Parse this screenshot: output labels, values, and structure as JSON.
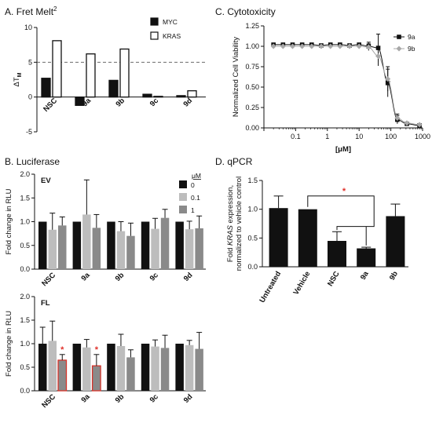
{
  "panels": {
    "A": {
      "letter": "A.",
      "title": "Fret Melt",
      "title_sup": "2"
    },
    "B": {
      "letter": "B.",
      "title": "Luciferase"
    },
    "C": {
      "letter": "C.",
      "title": "Cytotoxicity"
    },
    "D": {
      "letter": "D.",
      "title": "qPCR"
    }
  },
  "chart_data": [
    {
      "id": "A",
      "type": "bar",
      "ylabel": "ΔT",
      "ylabel_sub": "M",
      "ylim": [
        -5,
        10
      ],
      "yticks": [
        -5,
        0,
        5,
        10
      ],
      "reference_line": 5,
      "categories": [
        "NSC",
        "9a",
        "9b",
        "9c",
        "9d"
      ],
      "series": [
        {
          "name": "MYC",
          "color": "#111111",
          "values": [
            2.7,
            -1.2,
            2.4,
            0.4,
            0.2
          ]
        },
        {
          "name": "KRAS",
          "color": "#ffffff",
          "values": [
            8.1,
            6.2,
            6.9,
            0.1,
            0.9
          ]
        }
      ],
      "legend": "top-right"
    },
    {
      "id": "B_EV",
      "type": "bar",
      "panel_label": "EV",
      "ylabel": "Fold change in RLU",
      "ylim": [
        0,
        2.0
      ],
      "yticks": [
        0.0,
        0.5,
        1.0,
        1.5,
        2.0
      ],
      "legend_title": "μM",
      "legend": "top-right",
      "categories": [
        "NSC",
        "9a",
        "9b",
        "9c",
        "9d"
      ],
      "series": [
        {
          "name": "0",
          "color": "#111111",
          "values": [
            1.0,
            1.0,
            1.0,
            1.0,
            1.0
          ],
          "errors": [
            0.0,
            0.0,
            0.0,
            0.0,
            0.0
          ]
        },
        {
          "name": "0.1",
          "color": "#bdbdbd",
          "values": [
            0.83,
            1.15,
            0.8,
            0.85,
            0.84
          ],
          "errors": [
            0.35,
            0.73,
            0.2,
            0.22,
            0.17
          ]
        },
        {
          "name": "1",
          "color": "#8a8a8a",
          "values": [
            0.92,
            0.87,
            0.7,
            1.08,
            0.86
          ],
          "errors": [
            0.18,
            0.28,
            0.27,
            0.18,
            0.26
          ]
        }
      ]
    },
    {
      "id": "B_FL",
      "type": "bar",
      "panel_label": "FL",
      "ylabel": "Fold change in RLU",
      "ylim": [
        0,
        2.0
      ],
      "yticks": [
        0.0,
        0.5,
        1.0,
        1.5,
        2.0
      ],
      "categories": [
        "NSC",
        "9a",
        "9b",
        "9c",
        "9d"
      ],
      "series": [
        {
          "name": "0",
          "color": "#111111",
          "values": [
            1.0,
            1.0,
            1.0,
            1.0,
            1.0
          ],
          "errors": [
            0.35,
            0.0,
            0.0,
            0.0,
            0.0
          ]
        },
        {
          "name": "0.1",
          "color": "#bdbdbd",
          "values": [
            1.06,
            0.92,
            0.95,
            0.94,
            0.97
          ],
          "errors": [
            0.42,
            0.17,
            0.25,
            0.14,
            0.1
          ]
        },
        {
          "name": "1",
          "color": "#8a8a8a",
          "values": [
            0.65,
            0.53,
            0.71,
            0.91,
            0.89
          ],
          "errors": [
            0.12,
            0.24,
            0.16,
            0.27,
            0.35
          ]
        }
      ],
      "significant": [
        {
          "category": "NSC",
          "series": "1"
        },
        {
          "category": "9a",
          "series": "1"
        }
      ],
      "significance_marker": "*"
    },
    {
      "id": "C",
      "type": "line",
      "xlabel": "[μM]",
      "ylabel": "Normalized Cell Viability",
      "x_scale": "log",
      "xlim": [
        0.01,
        1000
      ],
      "xticks": [
        0.01,
        0.1,
        1,
        10,
        100,
        1000
      ],
      "xtick_labels": [
        "0.01",
        "0.1",
        "1",
        "10",
        "100",
        "1000"
      ],
      "ylim": [
        0,
        1.25
      ],
      "yticks": [
        0.0,
        0.25,
        0.5,
        0.75,
        1.0,
        1.25
      ],
      "ytick_labels": [
        "0.00",
        "0.25",
        "0.50",
        "0.75",
        "1.00",
        "1.25"
      ],
      "legend": "top-right",
      "series": [
        {
          "name": "9a",
          "color": "#111111",
          "marker": "square",
          "x": [
            0.02,
            0.04,
            0.08,
            0.16,
            0.32,
            0.64,
            1.25,
            2.5,
            5,
            10,
            20,
            40,
            80,
            160,
            320,
            800
          ],
          "y": [
            1.02,
            1.02,
            1.02,
            1.02,
            1.02,
            1.01,
            1.02,
            1.02,
            1.01,
            1.02,
            1.0,
            0.98,
            0.55,
            0.1,
            0.05,
            0.03
          ],
          "errors": [
            0.02,
            0.02,
            0.02,
            0.02,
            0.02,
            0.03,
            0.02,
            0.02,
            0.03,
            0.03,
            0.05,
            0.17,
            0.17,
            0.05,
            0.03,
            0.02
          ]
        },
        {
          "name": "9b",
          "color": "#a8a8a8",
          "marker": "diamond",
          "x": [
            0.02,
            0.04,
            0.08,
            0.16,
            0.32,
            0.64,
            1.25,
            2.5,
            5,
            10,
            20,
            40,
            80,
            160,
            320,
            800
          ],
          "y": [
            1.0,
            1.0,
            1.0,
            1.0,
            1.0,
            1.0,
            1.0,
            1.0,
            1.0,
            1.0,
            0.99,
            0.88,
            0.6,
            0.12,
            0.06,
            0.04
          ],
          "errors": [
            0.02,
            0.02,
            0.02,
            0.02,
            0.02,
            0.02,
            0.02,
            0.02,
            0.02,
            0.03,
            0.04,
            0.12,
            0.15,
            0.05,
            0.03,
            0.02
          ]
        }
      ]
    },
    {
      "id": "D",
      "type": "bar",
      "ylabel": "Fold KRAS expression, normalized to vehicle control",
      "ylabel_line1_pre": "Fold ",
      "ylabel_line1_italic": "KRAS",
      "ylabel_line1_post": " expression,",
      "ylabel_line2": "normalized to vehicle control",
      "ylim": [
        0,
        1.5
      ],
      "yticks": [
        0.0,
        0.5,
        1.0,
        1.5
      ],
      "categories": [
        "Untreated",
        "Vehicle",
        "NSC",
        "9a",
        "9b"
      ],
      "series": [
        {
          "name": "",
          "color": "#111111",
          "values": [
            1.02,
            1.0,
            0.45,
            0.32,
            0.88
          ],
          "errors": [
            0.21,
            0.0,
            0.16,
            0.02,
            0.21
          ]
        }
      ],
      "significance": {
        "from": "Vehicle",
        "to": [
          "NSC",
          "9a"
        ],
        "marker": "*"
      }
    }
  ]
}
